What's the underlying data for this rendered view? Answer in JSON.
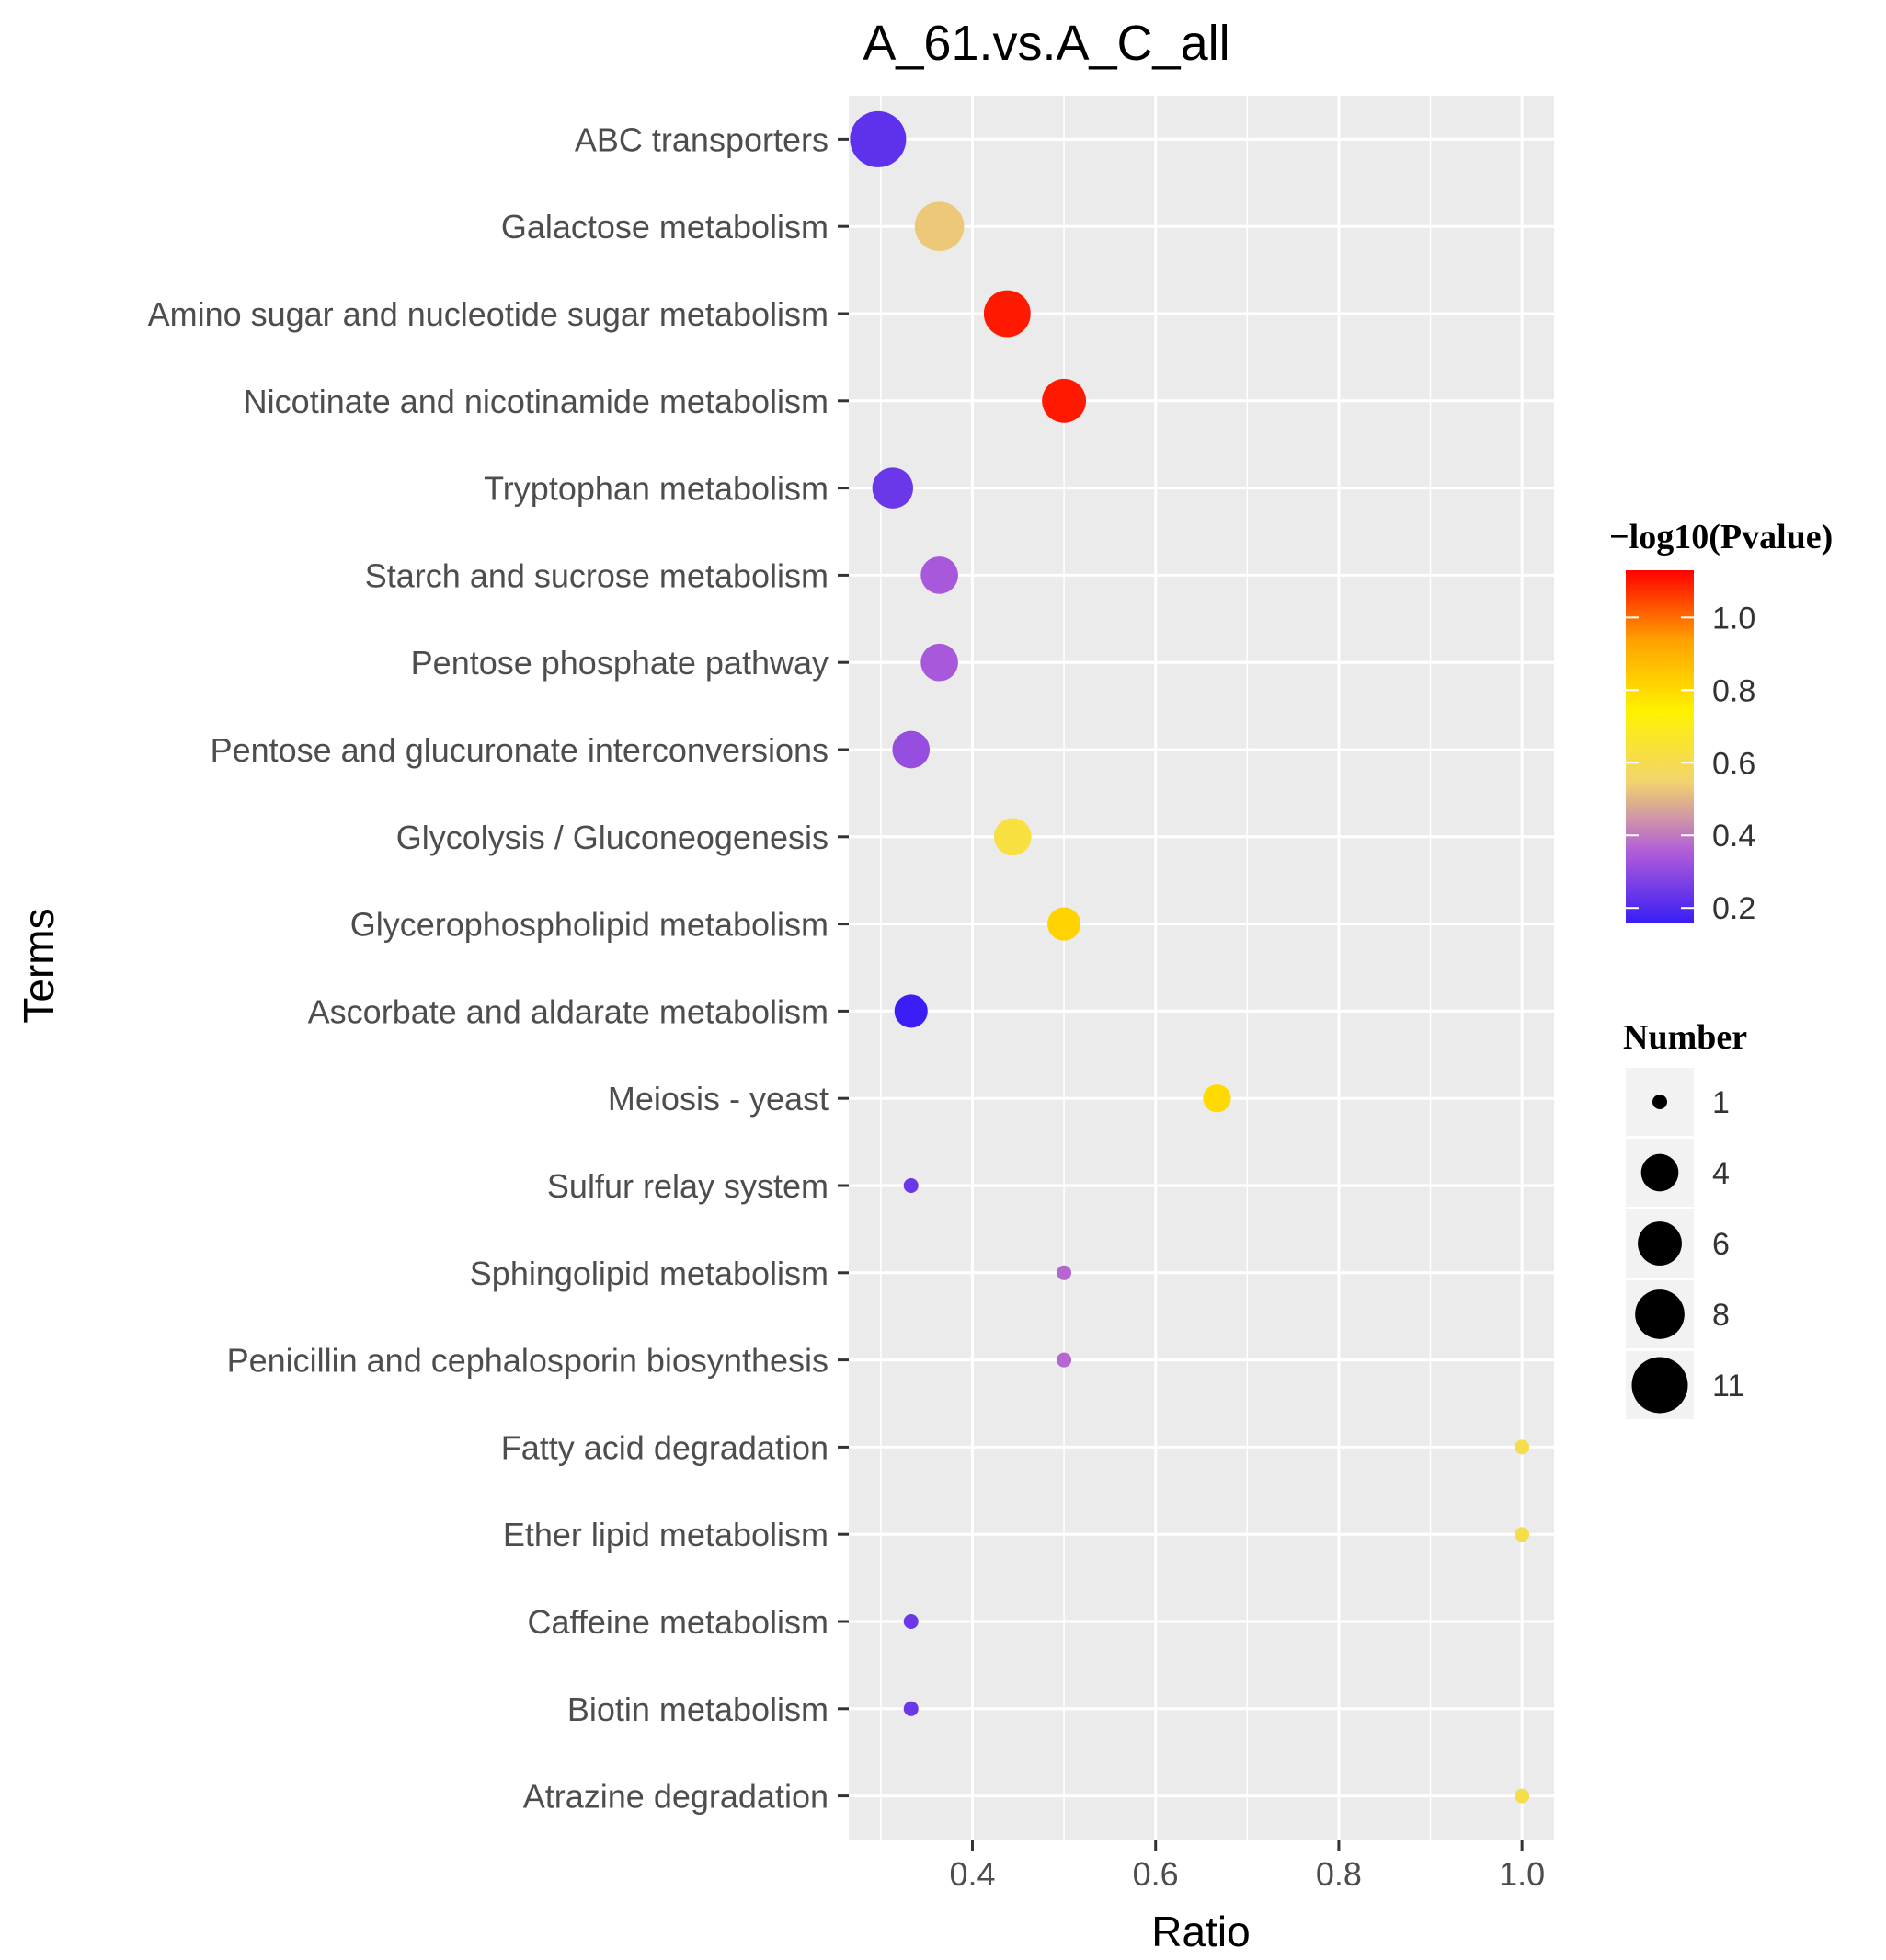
{
  "chart_data": {
    "type": "scatter",
    "title": "A_61.vs.A_C_all",
    "xlabel": "Ratio",
    "ylabel": "Terms",
    "xlim": [
      0.265,
      1.035
    ],
    "x_ticks": [
      0.4,
      0.6,
      0.8,
      1.0
    ],
    "x_tick_labels": [
      "0.4",
      "0.6",
      "0.8",
      "1.0"
    ],
    "grid": true,
    "points": [
      {
        "term": "ABC transporters",
        "ratio": 0.297,
        "neg_log10_p": 0.22,
        "number": 11
      },
      {
        "term": "Galactose metabolism",
        "ratio": 0.364,
        "neg_log10_p": 0.53,
        "number": 8
      },
      {
        "term": "Amino sugar and nucleotide sugar metabolism",
        "ratio": 0.438,
        "neg_log10_p": 1.1,
        "number": 7
      },
      {
        "term": "Nicotinate and nicotinamide metabolism",
        "ratio": 0.5,
        "neg_log10_p": 1.1,
        "number": 6
      },
      {
        "term": "Tryptophan metabolism",
        "ratio": 0.313,
        "neg_log10_p": 0.24,
        "number": 5
      },
      {
        "term": "Starch and sucrose metabolism",
        "ratio": 0.364,
        "neg_log10_p": 0.34,
        "number": 4
      },
      {
        "term": "Pentose phosphate pathway",
        "ratio": 0.364,
        "neg_log10_p": 0.34,
        "number": 4
      },
      {
        "term": "Pentose and glucuronate interconversions",
        "ratio": 0.333,
        "neg_log10_p": 0.31,
        "number": 4
      },
      {
        "term": "Glycolysis / Gluconeogenesis",
        "ratio": 0.444,
        "neg_log10_p": 0.63,
        "number": 4
      },
      {
        "term": "Glycerophospholipid metabolism",
        "ratio": 0.5,
        "neg_log10_p": 0.82,
        "number": 3
      },
      {
        "term": "Ascorbate and aldarate metabolism",
        "ratio": 0.333,
        "neg_log10_p": 0.16,
        "number": 3
      },
      {
        "term": "Meiosis - yeast",
        "ratio": 0.667,
        "neg_log10_p": 0.8,
        "number": 2
      },
      {
        "term": "Sulfur relay system",
        "ratio": 0.333,
        "neg_log10_p": 0.24,
        "number": 1
      },
      {
        "term": "Sphingolipid metabolism",
        "ratio": 0.5,
        "neg_log10_p": 0.37,
        "number": 1
      },
      {
        "term": "Penicillin and cephalosporin biosynthesis",
        "ratio": 0.5,
        "neg_log10_p": 0.37,
        "number": 1
      },
      {
        "term": "Fatty acid degradation",
        "ratio": 1.0,
        "neg_log10_p": 0.61,
        "number": 1
      },
      {
        "term": "Ether lipid metabolism",
        "ratio": 1.0,
        "neg_log10_p": 0.61,
        "number": 1
      },
      {
        "term": "Caffeine metabolism",
        "ratio": 0.333,
        "neg_log10_p": 0.24,
        "number": 1
      },
      {
        "term": "Biotin metabolism",
        "ratio": 0.333,
        "neg_log10_p": 0.24,
        "number": 1
      },
      {
        "term": "Atrazine degradation",
        "ratio": 1.0,
        "neg_log10_p": 0.61,
        "number": 1
      }
    ],
    "color_legend": {
      "title": "−log10(Pvalue)",
      "range": [
        0.16,
        1.13
      ],
      "breaks": [
        0.2,
        0.4,
        0.6,
        0.8,
        1.0
      ],
      "break_labels": [
        "0.2",
        "0.4",
        "0.6",
        "0.8",
        "1.0"
      ],
      "colors": [
        "#3a1ef5",
        "#b05cd9",
        "#f2d36e",
        "#fff200",
        "#ffa200",
        "#ff0000"
      ]
    },
    "size_legend": {
      "title": "Number",
      "breaks": [
        1,
        4,
        6,
        8,
        11
      ],
      "break_labels": [
        "1",
        "4",
        "6",
        "8",
        "11"
      ]
    }
  }
}
